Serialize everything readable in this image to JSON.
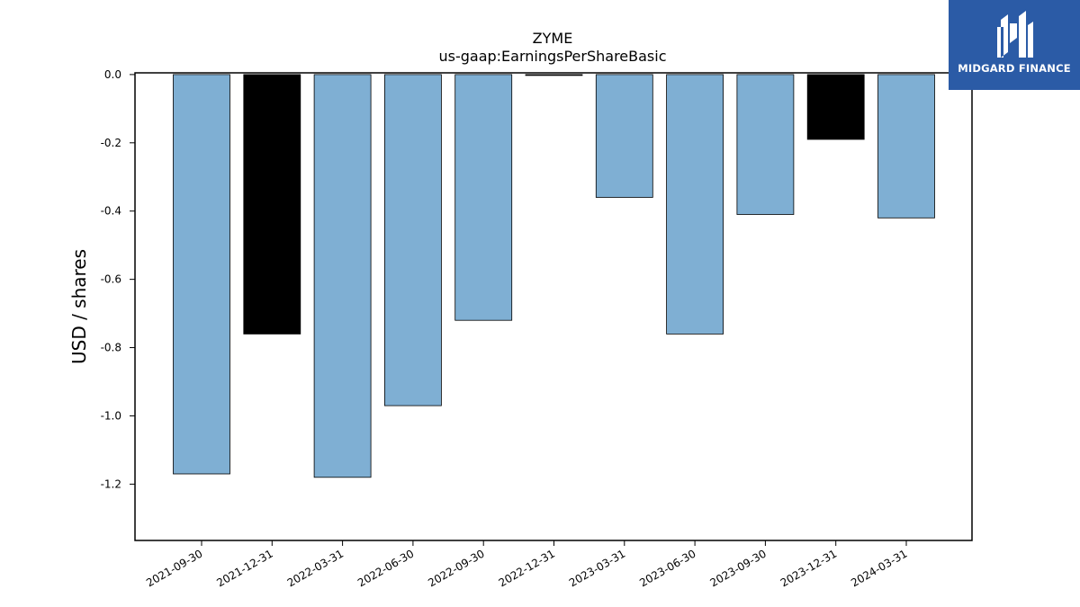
{
  "logo": {
    "text": "MIDGARD FINANCE",
    "background": "#2b5ba6"
  },
  "chart_data": {
    "type": "bar",
    "title": "ZYME",
    "subtitle": "us-gaap:EarningsPerShareBasic",
    "xlabel": "",
    "ylabel": "USD / shares",
    "ylim": [
      -1.365,
      0.005
    ],
    "yticks": [
      "0.0",
      "-0.2",
      "-0.4",
      "-0.6",
      "-0.8",
      "-1.0",
      "-1.2"
    ],
    "grid": false,
    "categories": [
      "2021-09-30",
      "2021-12-31",
      "2022-03-31",
      "2022-06-30",
      "2022-09-30",
      "2022-12-31",
      "2023-03-31",
      "2023-06-30",
      "2023-09-30",
      "2023-12-31",
      "2024-03-31"
    ],
    "values": [
      -1.17,
      -0.76,
      -1.18,
      -0.97,
      -0.72,
      0.0,
      -0.36,
      -0.76,
      -0.41,
      -0.19,
      -0.42
    ],
    "colors": [
      "#7fafd3",
      "#000000",
      "#7fafd3",
      "#7fafd3",
      "#7fafd3",
      "#000000",
      "#7fafd3",
      "#7fafd3",
      "#7fafd3",
      "#000000",
      "#7fafd3"
    ]
  }
}
